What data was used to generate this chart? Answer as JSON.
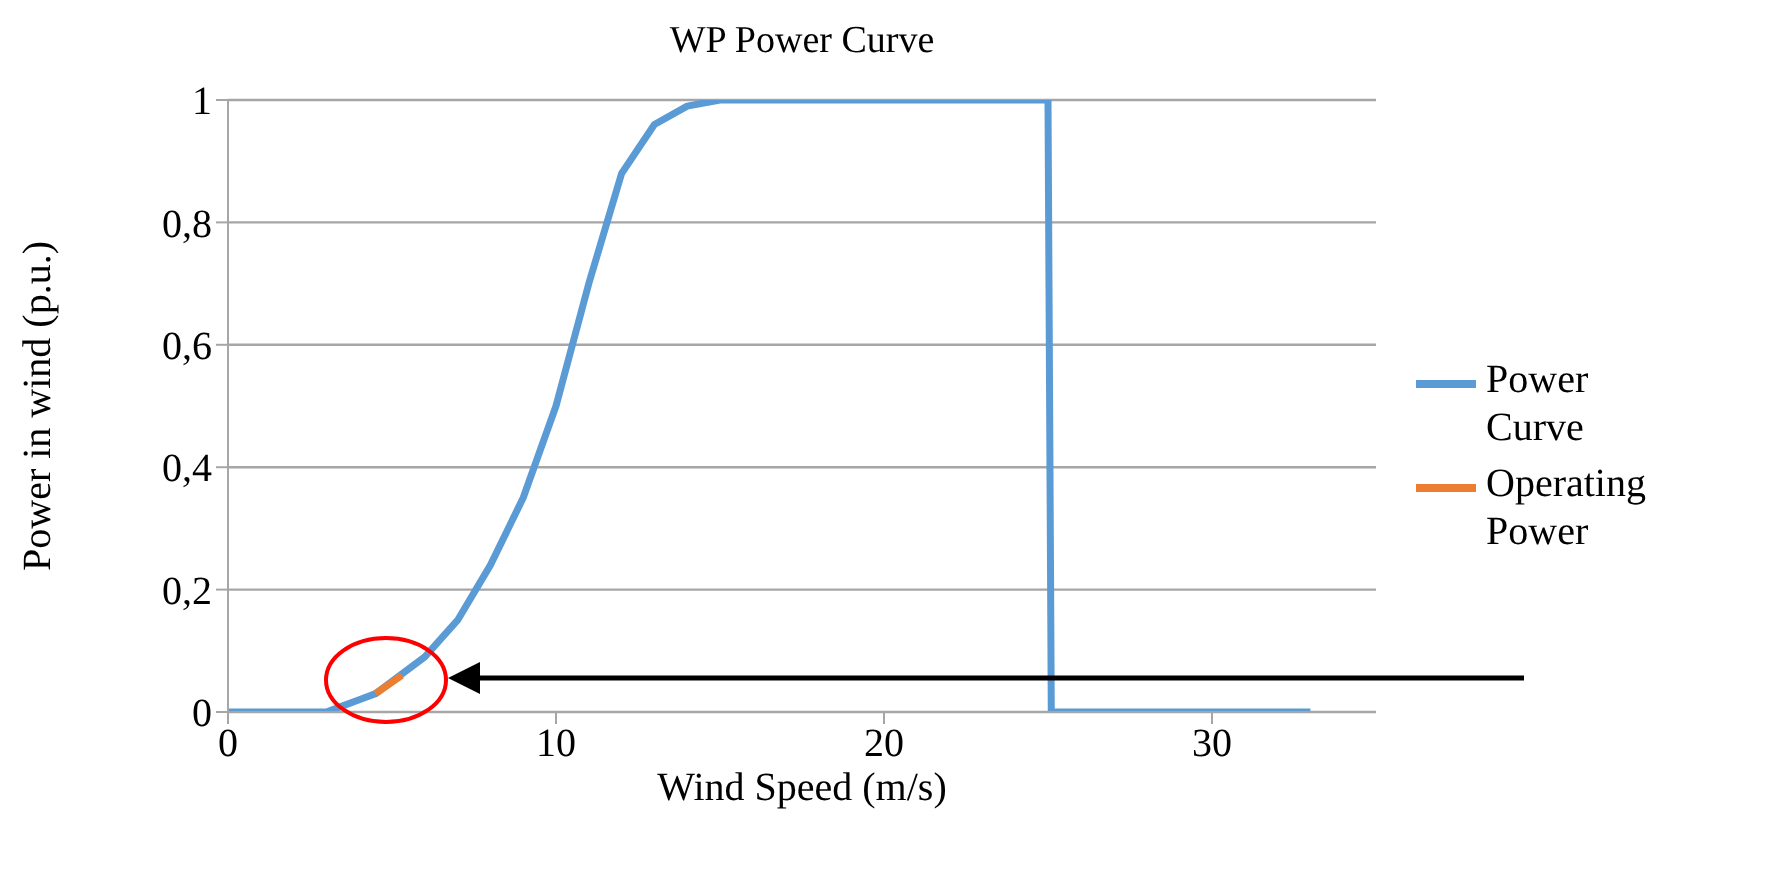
{
  "chart_data": {
    "type": "line",
    "title": "WP Power Curve",
    "xlabel": "Wind Speed (m/s)",
    "ylabel": "Power in wind (p.u.)",
    "series": [
      {
        "name": "Power Curve",
        "color": "#5b9bd5",
        "x": [
          0,
          3,
          3.5,
          4,
          4.5,
          5,
          6,
          7,
          8,
          9,
          10,
          11,
          12,
          13,
          14,
          15,
          25,
          25.1,
          33
        ],
        "values": [
          0,
          0,
          0.01,
          0.02,
          0.03,
          0.05,
          0.09,
          0.15,
          0.24,
          0.35,
          0.5,
          0.7,
          0.88,
          0.96,
          0.99,
          1,
          1,
          0,
          0
        ]
      },
      {
        "name": "Operating Power",
        "color": "#ed7d31",
        "x": [
          4.5,
          5.3
        ],
        "values": [
          0.03,
          0.06
        ]
      }
    ],
    "xlim": [
      0,
      35
    ],
    "xticks": [
      0,
      10,
      20,
      30
    ],
    "ylim": [
      0,
      1
    ],
    "yticks": [
      0,
      {
        "value": 0.2,
        "label": "0,2"
      },
      {
        "value": 0.4,
        "label": "0,4"
      },
      {
        "value": 0.6,
        "label": "0,6"
      },
      {
        "value": 0.8,
        "label": "0,8"
      },
      1
    ],
    "grid": "y",
    "legend": "right",
    "marker": "none",
    "line_style": "solid"
  }
}
